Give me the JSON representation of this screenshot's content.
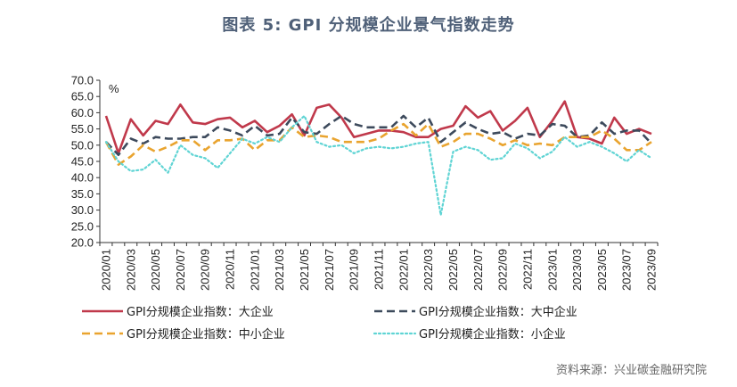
{
  "title": "图表 5:  GPI 分规模企业景气指数走势",
  "source": "资料来源：兴业碳金融研究院",
  "chart_data": {
    "type": "line",
    "unit_label": "%",
    "ylim": [
      20.0,
      70.0
    ],
    "yticks": [
      "70.0",
      "65.0",
      "60.0",
      "55.0",
      "50.0",
      "45.0",
      "40.0",
      "35.0",
      "30.0",
      "25.0",
      "20.0"
    ],
    "x": [
      "2020/01",
      "2020/02",
      "2020/03",
      "2020/04",
      "2020/05",
      "2020/06",
      "2020/07",
      "2020/08",
      "2020/09",
      "2020/10",
      "2020/11",
      "2020/12",
      "2021/01",
      "2021/02",
      "2021/03",
      "2021/04",
      "2021/05",
      "2021/06",
      "2021/07",
      "2021/08",
      "2021/09",
      "2021/10",
      "2021/11",
      "2021/12",
      "2022/01",
      "2022/02",
      "2022/03",
      "2022/04",
      "2022/05",
      "2022/06",
      "2022/07",
      "2022/08",
      "2022/09",
      "2022/10",
      "2022/11",
      "2022/12",
      "2023/01",
      "2023/02",
      "2023/03",
      "2023/04",
      "2023/05",
      "2023/06",
      "2023/07",
      "2023/08",
      "2023/09"
    ],
    "xtick_labels": [
      "2020/01",
      "2020/03",
      "2020/05",
      "2020/07",
      "2020/09",
      "2020/11",
      "2021/01",
      "2021/03",
      "2021/05",
      "2021/07",
      "2021/09",
      "2021/11",
      "2022/01",
      "2022/03",
      "2022/05",
      "2022/07",
      "2022/09",
      "2022/11",
      "2023/01",
      "2023/03",
      "2023/05",
      "2023/07",
      "2023/09"
    ],
    "series": [
      {
        "name": "GPI分规模企业指数：大企业",
        "color": "#c0394b",
        "style": "solid",
        "values": [
          59,
          47.5,
          58,
          53,
          57.5,
          56.5,
          62.5,
          57,
          56.5,
          58,
          58.5,
          55.5,
          57.5,
          54,
          56,
          59.5,
          53,
          61.5,
          62.5,
          58.5,
          52.5,
          53.5,
          54.5,
          54.5,
          54,
          52.5,
          52.5,
          55,
          56,
          62,
          58.5,
          60.5,
          54.5,
          57.5,
          61.5,
          52.5,
          57.5,
          63.5,
          52.5,
          52,
          50.5,
          58.5,
          53.5,
          55,
          53.5
        ]
      },
      {
        "name": "GPI分规模企业指数：大中企业",
        "color": "#3d4a5c",
        "style": "dash",
        "values": [
          51,
          47,
          52,
          50.5,
          52.5,
          52,
          52,
          52.5,
          52.5,
          55.5,
          54.5,
          53,
          56,
          53,
          53.5,
          58.5,
          54,
          53.5,
          56.5,
          59,
          56.5,
          55.5,
          55.5,
          55.5,
          59,
          55.5,
          58.5,
          51,
          54,
          57,
          55,
          53.5,
          54,
          52,
          53.5,
          53,
          56.5,
          56,
          52.5,
          53,
          57,
          53.5,
          54.5,
          54.5,
          50.5
        ]
      },
      {
        "name": "GPI分规模企业指数：中小企业",
        "color": "#e9a42f",
        "style": "dash",
        "values": [
          51,
          44,
          46.5,
          50,
          48,
          49.5,
          51.5,
          51.5,
          48.5,
          51.5,
          51.5,
          52,
          48.5,
          51.5,
          51.5,
          55.5,
          52.5,
          53,
          52.5,
          51,
          51,
          51,
          52,
          54.5,
          56.5,
          53,
          56.5,
          49.5,
          51,
          53.5,
          53.5,
          52,
          50,
          51.5,
          50,
          50.5,
          50,
          52.5,
          52.5,
          52.5,
          54.5,
          52,
          48.5,
          48.5,
          51
        ]
      },
      {
        "name": "GPI分规模企业指数：小企业",
        "color": "#5fd4d4",
        "style": "dot",
        "values": [
          51,
          45,
          42,
          42.5,
          45.5,
          41.5,
          50,
          47,
          46,
          43,
          47.5,
          52,
          50.5,
          52.5,
          51,
          55.5,
          59,
          51,
          49.5,
          50,
          47.5,
          49,
          49.5,
          49,
          49.5,
          50.5,
          51,
          28.5,
          48,
          49.5,
          48.5,
          45.5,
          46,
          50.5,
          49,
          46,
          48,
          52.5,
          49.5,
          51,
          49.5,
          47.5,
          45,
          48.5,
          46
        ]
      }
    ],
    "legend_placement": "bottom, two columns"
  }
}
